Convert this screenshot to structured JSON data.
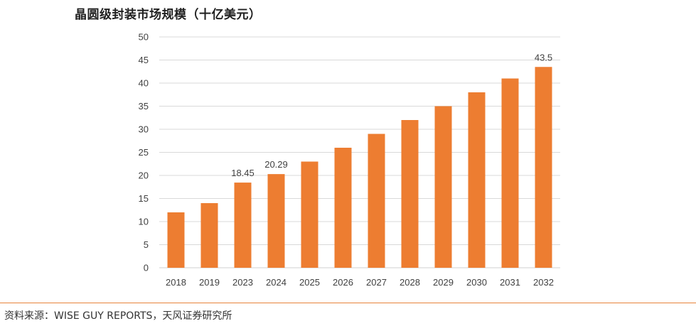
{
  "title": "晶圆级封装市场规模（十亿美元）",
  "source": "资料来源：WISE  GUY REPORTS，天风证券研究所",
  "colors": {
    "bar": "#ED7D31",
    "grid": "#d9d9d9",
    "divider": "#e8833a"
  },
  "chart_data": {
    "type": "bar",
    "title": "晶圆级封装市场规模（十亿美元）",
    "xlabel": "",
    "ylabel": "",
    "ylim": [
      0,
      50
    ],
    "yticks": [
      0,
      5,
      10,
      15,
      20,
      25,
      30,
      35,
      40,
      45,
      50
    ],
    "grid": true,
    "legend": "none",
    "categories": [
      "2018",
      "2019",
      "2023",
      "2024",
      "2025",
      "2026",
      "2027",
      "2028",
      "2029",
      "2030",
      "2031",
      "2032"
    ],
    "values": [
      12,
      14,
      18.45,
      20.29,
      23,
      26,
      29,
      32,
      35,
      38,
      41,
      43.5
    ],
    "data_labels": [
      "",
      "",
      "18.45",
      "20.29",
      "",
      "",
      "",
      "",
      "",
      "",
      "",
      "43.5"
    ]
  }
}
